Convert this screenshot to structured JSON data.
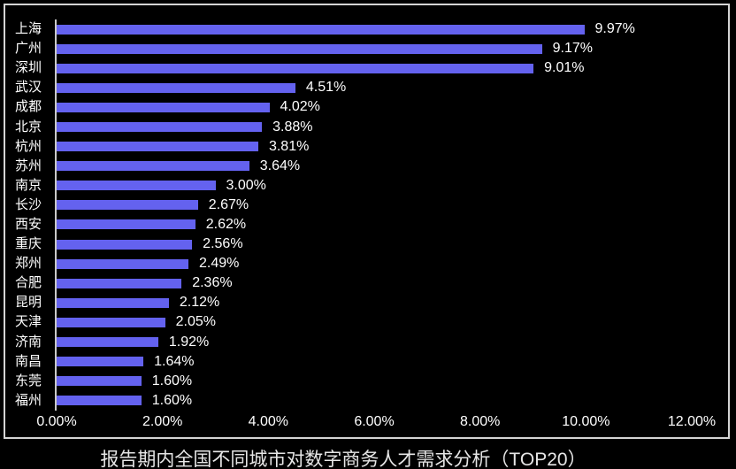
{
  "chart_data": {
    "type": "bar",
    "orientation": "horizontal",
    "title": "报告期内全国不同城市对数字商务人才需求分析（TOP20）",
    "categories": [
      "上海",
      "广州",
      "深圳",
      "武汉",
      "成都",
      "北京",
      "杭州",
      "苏州",
      "南京",
      "长沙",
      "西安",
      "重庆",
      "郑州",
      "合肥",
      "昆明",
      "天津",
      "济南",
      "南昌",
      "东莞",
      "福州"
    ],
    "values": [
      9.97,
      9.17,
      9.01,
      4.51,
      4.02,
      3.88,
      3.81,
      3.64,
      3.0,
      2.67,
      2.62,
      2.56,
      2.49,
      2.36,
      2.12,
      2.05,
      1.92,
      1.64,
      1.6,
      1.6
    ],
    "value_labels": [
      "9.97%",
      "9.17%",
      "9.01%",
      "4.51%",
      "4.02%",
      "3.88%",
      "3.81%",
      "3.64%",
      "3.00%",
      "2.67%",
      "2.62%",
      "2.56%",
      "2.49%",
      "2.36%",
      "2.12%",
      "2.05%",
      "1.92%",
      "1.64%",
      "1.60%",
      "1.60%"
    ],
    "x_ticks": [
      "0.00%",
      "2.00%",
      "4.00%",
      "6.00%",
      "8.00%",
      "10.00%",
      "12.00%"
    ],
    "xlim": [
      0,
      12
    ],
    "xlabel": "",
    "ylabel": "",
    "grid": false,
    "legend": "none",
    "colors": {
      "bar": "#6462ef",
      "background": "#000000",
      "text": "#ffffff",
      "axis_line": "#c9c9c9",
      "frame_border": "#d4d4d4",
      "title_text": "#e6e6e6"
    }
  }
}
